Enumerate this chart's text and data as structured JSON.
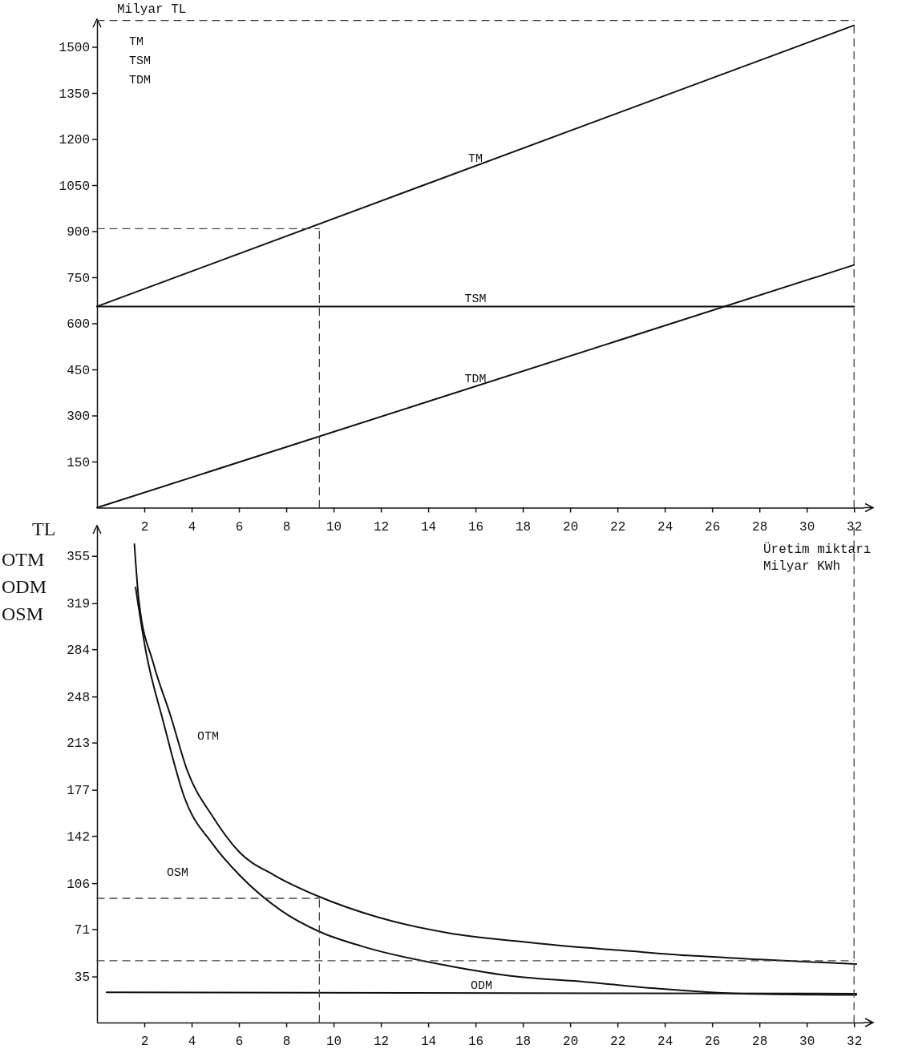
{
  "chart_data": [
    {
      "type": "line",
      "ylabel": "Milyar TL",
      "xlim": [
        0,
        32.4
      ],
      "xticks": [
        2,
        4,
        6,
        8,
        10,
        12,
        14,
        16,
        18,
        20,
        22,
        24,
        26,
        28,
        30,
        32
      ],
      "ylim": [
        0,
        1590
      ],
      "yticks": [
        150,
        300,
        450,
        600,
        750,
        900,
        1050,
        1200,
        1350,
        1500
      ],
      "annotations": [
        "TM",
        "TSM",
        "TDM"
      ],
      "series": [
        {
          "name": "TM",
          "color": "#111111",
          "x": [
            0,
            32
          ],
          "values": [
            655,
            1570
          ]
        },
        {
          "name": "TSM",
          "color": "#111111",
          "x": [
            0,
            32
          ],
          "values": [
            655,
            655
          ]
        },
        {
          "name": "TDM",
          "color": "#111111",
          "x": [
            0,
            32
          ],
          "values": [
            0,
            790
          ]
        },
        {
          "color": "#444444",
          "line_style": "dashed",
          "x": [
            0,
            9.4
          ],
          "values": [
            908,
            908
          ]
        },
        {
          "color": "#444444",
          "line_style": "dashed",
          "x": [
            9.4,
            9.4
          ],
          "values": [
            0,
            918
          ]
        },
        {
          "color": "#444444",
          "line_style": "dashed",
          "x": [
            0,
            32
          ],
          "values": [
            1586,
            1586
          ]
        },
        {
          "color": "#444444",
          "line_style": "dashed",
          "x": [
            32,
            32
          ],
          "values": [
            0,
            1586
          ]
        }
      ]
    },
    {
      "type": "line",
      "ylabel": "TL",
      "xlabel": "Üretim miktarı Milyar KWh",
      "xlim": [
        0,
        32.4
      ],
      "xticks": [
        2,
        4,
        6,
        8,
        10,
        12,
        14,
        16,
        18,
        20,
        22,
        24,
        26,
        28,
        30,
        32
      ],
      "ylim": [
        0,
        378
      ],
      "yticks": [
        35,
        71,
        106,
        142,
        177,
        213,
        248,
        284,
        319,
        355
      ],
      "annotations": [
        "OTM",
        "ODM",
        "OSM"
      ],
      "series": [
        {
          "name": "OTM",
          "color": "#111111",
          "x": [
            1.58,
            1.77,
            2.37,
            3.1,
            3.83,
            4.88,
            6.0,
            7.5,
            9.36,
            11.9,
            14.9,
            17.7,
            19.9,
            22.1,
            25.0,
            28.0,
            32.1
          ],
          "values": [
            364,
            321,
            274,
            234,
            191,
            157,
            130,
            112,
            96,
            80,
            68,
            62,
            58,
            55,
            51,
            48,
            44.5
          ]
        },
        {
          "name": "OSM",
          "color": "#111111",
          "x": [
            1.63,
            2.07,
            2.8,
            3.7,
            4.88,
            6.03,
            7.8,
            9.36,
            11.2,
            14.9,
            17.7,
            20.6,
            23.6,
            27.3,
            32.1
          ],
          "values": [
            331,
            282,
            229,
            171,
            136,
            112,
            85,
            69.5,
            58,
            43,
            35,
            31,
            26,
            22,
            21
          ]
        },
        {
          "name": "ODM",
          "color": "#111111",
          "x": [
            0.4,
            32.1
          ],
          "values": [
            23,
            22
          ]
        },
        {
          "color": "#444444",
          "line_style": "dashed",
          "x": [
            0,
            9.4
          ],
          "values": [
            94.5,
            94.5
          ]
        },
        {
          "color": "#444444",
          "line_style": "dashed",
          "x": [
            9.4,
            9.4
          ],
          "values": [
            0,
            94.5
          ]
        },
        {
          "color": "#444444",
          "line_style": "dashed",
          "x": [
            0,
            32
          ],
          "values": [
            47,
            47
          ]
        },
        {
          "color": "#444444",
          "line_style": "dashed",
          "x": [
            32,
            32
          ],
          "values": [
            0,
            378
          ]
        }
      ]
    }
  ]
}
